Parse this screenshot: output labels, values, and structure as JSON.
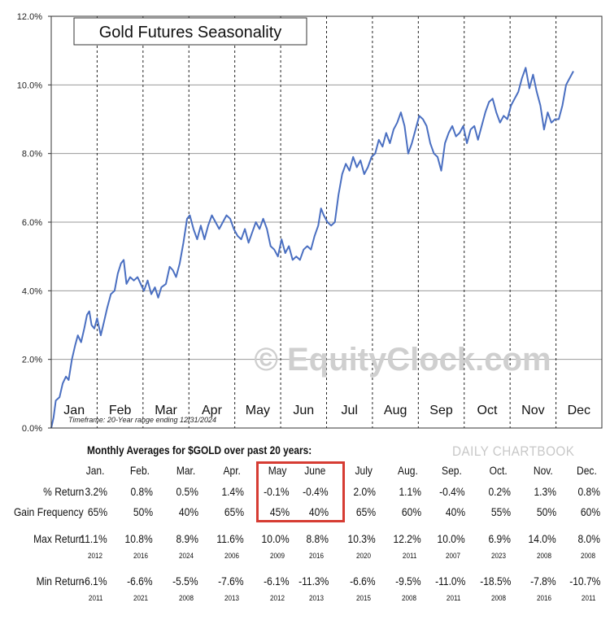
{
  "chart_data": {
    "type": "line",
    "title": "Gold Futures Seasonality",
    "xlabel": "",
    "ylabel": "",
    "ylim": [
      0,
      12
    ],
    "yticks": [
      "0.0%",
      "2.0%",
      "4.0%",
      "6.0%",
      "8.0%",
      "10.0%",
      "12.0%"
    ],
    "months": [
      "Jan",
      "Feb",
      "Mar",
      "Apr",
      "May",
      "Jun",
      "Jul",
      "Aug",
      "Sep",
      "Oct",
      "Nov",
      "Dec"
    ],
    "grid": "vertical dashed month separators, horizontal gridlines",
    "series": [
      {
        "color": "#4a6fc1",
        "points": [
          [
            0.0,
            0.0
          ],
          [
            0.05,
            0.3
          ],
          [
            0.1,
            0.8
          ],
          [
            0.18,
            0.9
          ],
          [
            0.25,
            1.3
          ],
          [
            0.32,
            1.5
          ],
          [
            0.38,
            1.4
          ],
          [
            0.45,
            2.0
          ],
          [
            0.52,
            2.4
          ],
          [
            0.58,
            2.7
          ],
          [
            0.65,
            2.5
          ],
          [
            0.72,
            2.9
          ],
          [
            0.78,
            3.3
          ],
          [
            0.83,
            3.4
          ],
          [
            0.88,
            3.0
          ],
          [
            0.94,
            2.9
          ],
          [
            1.0,
            3.2
          ],
          [
            1.08,
            2.7
          ],
          [
            1.15,
            3.1
          ],
          [
            1.22,
            3.5
          ],
          [
            1.3,
            3.9
          ],
          [
            1.38,
            4.0
          ],
          [
            1.45,
            4.5
          ],
          [
            1.52,
            4.8
          ],
          [
            1.58,
            4.9
          ],
          [
            1.64,
            4.2
          ],
          [
            1.72,
            4.4
          ],
          [
            1.8,
            4.3
          ],
          [
            1.88,
            4.4
          ],
          [
            1.95,
            4.2
          ],
          [
            2.02,
            4.0
          ],
          [
            2.1,
            4.3
          ],
          [
            2.18,
            3.9
          ],
          [
            2.26,
            4.1
          ],
          [
            2.33,
            3.8
          ],
          [
            2.4,
            4.1
          ],
          [
            2.5,
            4.2
          ],
          [
            2.58,
            4.7
          ],
          [
            2.65,
            4.6
          ],
          [
            2.72,
            4.4
          ],
          [
            2.8,
            4.8
          ],
          [
            2.88,
            5.4
          ],
          [
            2.96,
            6.1
          ],
          [
            3.02,
            6.2
          ],
          [
            3.1,
            5.8
          ],
          [
            3.18,
            5.5
          ],
          [
            3.26,
            5.9
          ],
          [
            3.34,
            5.5
          ],
          [
            3.42,
            5.9
          ],
          [
            3.5,
            6.2
          ],
          [
            3.58,
            6.0
          ],
          [
            3.66,
            5.8
          ],
          [
            3.74,
            6.0
          ],
          [
            3.82,
            6.2
          ],
          [
            3.9,
            6.1
          ],
          [
            3.98,
            5.8
          ],
          [
            4.06,
            5.6
          ],
          [
            4.14,
            5.5
          ],
          [
            4.22,
            5.8
          ],
          [
            4.3,
            5.4
          ],
          [
            4.38,
            5.7
          ],
          [
            4.46,
            6.0
          ],
          [
            4.54,
            5.8
          ],
          [
            4.62,
            6.1
          ],
          [
            4.7,
            5.8
          ],
          [
            4.78,
            5.3
          ],
          [
            4.86,
            5.2
          ],
          [
            4.94,
            5.0
          ],
          [
            5.02,
            5.5
          ],
          [
            5.1,
            5.1
          ],
          [
            5.18,
            5.3
          ],
          [
            5.26,
            4.9
          ],
          [
            5.34,
            5.0
          ],
          [
            5.42,
            4.9
          ],
          [
            5.5,
            5.2
          ],
          [
            5.58,
            5.3
          ],
          [
            5.66,
            5.2
          ],
          [
            5.74,
            5.6
          ],
          [
            5.82,
            5.9
          ],
          [
            5.88,
            6.4
          ],
          [
            5.94,
            6.2
          ],
          [
            6.02,
            6.0
          ],
          [
            6.1,
            5.9
          ],
          [
            6.18,
            6.0
          ],
          [
            6.26,
            6.8
          ],
          [
            6.34,
            7.4
          ],
          [
            6.42,
            7.7
          ],
          [
            6.5,
            7.5
          ],
          [
            6.58,
            7.9
          ],
          [
            6.66,
            7.6
          ],
          [
            6.74,
            7.8
          ],
          [
            6.82,
            7.4
          ],
          [
            6.9,
            7.6
          ],
          [
            6.98,
            7.9
          ],
          [
            7.06,
            8.0
          ],
          [
            7.14,
            8.4
          ],
          [
            7.22,
            8.2
          ],
          [
            7.3,
            8.6
          ],
          [
            7.38,
            8.3
          ],
          [
            7.46,
            8.7
          ],
          [
            7.54,
            8.9
          ],
          [
            7.62,
            9.2
          ],
          [
            7.7,
            8.8
          ],
          [
            7.78,
            8.0
          ],
          [
            7.86,
            8.3
          ],
          [
            7.94,
            8.7
          ],
          [
            8.02,
            9.1
          ],
          [
            8.1,
            9.0
          ],
          [
            8.18,
            8.8
          ],
          [
            8.26,
            8.3
          ],
          [
            8.34,
            8.0
          ],
          [
            8.42,
            7.9
          ],
          [
            8.5,
            7.5
          ],
          [
            8.58,
            8.3
          ],
          [
            8.66,
            8.6
          ],
          [
            8.74,
            8.8
          ],
          [
            8.82,
            8.5
          ],
          [
            8.9,
            8.6
          ],
          [
            8.98,
            8.8
          ],
          [
            9.06,
            8.3
          ],
          [
            9.14,
            8.7
          ],
          [
            9.22,
            8.8
          ],
          [
            9.3,
            8.4
          ],
          [
            9.38,
            8.8
          ],
          [
            9.46,
            9.2
          ],
          [
            9.54,
            9.5
          ],
          [
            9.62,
            9.6
          ],
          [
            9.7,
            9.2
          ],
          [
            9.78,
            8.9
          ],
          [
            9.86,
            9.1
          ],
          [
            9.94,
            9.0
          ],
          [
            10.02,
            9.4
          ],
          [
            10.1,
            9.6
          ],
          [
            10.18,
            9.8
          ],
          [
            10.26,
            10.2
          ],
          [
            10.34,
            10.5
          ],
          [
            10.42,
            9.9
          ],
          [
            10.5,
            10.3
          ],
          [
            10.58,
            9.8
          ],
          [
            10.66,
            9.4
          ],
          [
            10.74,
            8.7
          ],
          [
            10.82,
            9.2
          ],
          [
            10.9,
            8.9
          ],
          [
            10.98,
            9.0
          ],
          [
            11.06,
            9.0
          ],
          [
            11.14,
            9.4
          ],
          [
            11.22,
            10.0
          ],
          [
            11.3,
            10.2
          ],
          [
            11.38,
            10.4
          ]
        ]
      }
    ]
  },
  "watermark": "© EquityClock.com",
  "timeframe": "Timeframe: 20-Year range ending 12/31/2024",
  "table": {
    "title": "Monthly Averages for $GOLD over past 20 years:",
    "source": "DAILY CHARTBOOK",
    "months": [
      "Jan.",
      "Feb.",
      "Mar.",
      "Apr.",
      "May",
      "June",
      "July",
      "Aug.",
      "Sep.",
      "Oct.",
      "Nov.",
      "Dec."
    ],
    "row_labels": {
      "pct_return": "% Return",
      "gain_freq": "Gain Frequency",
      "max_return": "Max Return",
      "min_return": "Min Return"
    },
    "pct_return": [
      "3.2%",
      "0.8%",
      "0.5%",
      "1.4%",
      "-0.1%",
      "-0.4%",
      "2.0%",
      "1.1%",
      "-0.4%",
      "0.2%",
      "1.3%",
      "0.8%"
    ],
    "gain_freq": [
      "65%",
      "50%",
      "40%",
      "65%",
      "45%",
      "40%",
      "65%",
      "60%",
      "40%",
      "55%",
      "50%",
      "60%"
    ],
    "max_return": [
      "11.1%",
      "10.8%",
      "8.9%",
      "11.6%",
      "10.0%",
      "8.8%",
      "10.3%",
      "12.2%",
      "10.0%",
      "6.9%",
      "14.0%",
      "8.0%"
    ],
    "max_year": [
      "2012",
      "2016",
      "2024",
      "2006",
      "2009",
      "2016",
      "2020",
      "2011",
      "2007",
      "2023",
      "2008",
      "2008"
    ],
    "min_return": [
      "-6.1%",
      "-6.6%",
      "-5.5%",
      "-7.6%",
      "-6.1%",
      "-11.3%",
      "-6.6%",
      "-9.5%",
      "-11.0%",
      "-18.5%",
      "-7.8%",
      "-10.7%"
    ],
    "min_year": [
      "2011",
      "2021",
      "2008",
      "2013",
      "2012",
      "2013",
      "2015",
      "2008",
      "2011",
      "2008",
      "2016",
      "2011"
    ],
    "highlight": [
      "May",
      "June"
    ],
    "highlight_color": "#d63c33"
  }
}
